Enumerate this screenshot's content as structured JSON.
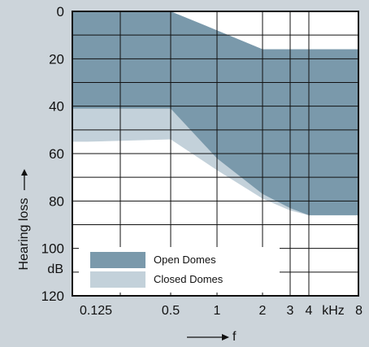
{
  "chart_data": {
    "type": "area",
    "ylabel": "Hearing loss",
    "xlabel": "f",
    "y_unit": "dB",
    "x_unit": "kHz",
    "y_scale": "reversed",
    "ylim": [
      0,
      120
    ],
    "y_ticks": [
      0,
      20,
      40,
      60,
      80,
      100,
      120
    ],
    "x_ticks": [
      {
        "value": 0.125,
        "label": "0.125"
      },
      {
        "value": 0.5,
        "label": "0.5"
      },
      {
        "value": 1,
        "label": "1"
      },
      {
        "value": 2,
        "label": "2"
      },
      {
        "value": 3,
        "label": "3"
      },
      {
        "value": 4,
        "label": "4"
      },
      {
        "value": 8,
        "label": "8"
      }
    ],
    "grid": true,
    "legend_position": "bottom-left",
    "series": [
      {
        "name": "Closed Domes",
        "color": "#c3d1da",
        "upper": [
          [
            0.125,
            0
          ],
          [
            0.5,
            0
          ],
          [
            1,
            8
          ],
          [
            2,
            16
          ],
          [
            3,
            16
          ],
          [
            4,
            16
          ],
          [
            8,
            16
          ]
        ],
        "lower": [
          [
            0.125,
            55
          ],
          [
            0.5,
            54
          ],
          [
            1,
            67
          ],
          [
            2,
            79
          ],
          [
            3,
            84
          ],
          [
            4,
            86
          ],
          [
            8,
            86
          ]
        ]
      },
      {
        "name": "Open Domes",
        "color": "#7a99ab",
        "upper": [
          [
            0.125,
            0
          ],
          [
            0.5,
            0
          ],
          [
            1,
            8
          ],
          [
            2,
            16
          ],
          [
            3,
            16
          ],
          [
            4,
            16
          ],
          [
            8,
            16
          ]
        ],
        "lower": [
          [
            0.125,
            41
          ],
          [
            0.5,
            41
          ],
          [
            1,
            62
          ],
          [
            2,
            77
          ],
          [
            3,
            83
          ],
          [
            4,
            86
          ],
          [
            8,
            86
          ]
        ]
      }
    ]
  }
}
